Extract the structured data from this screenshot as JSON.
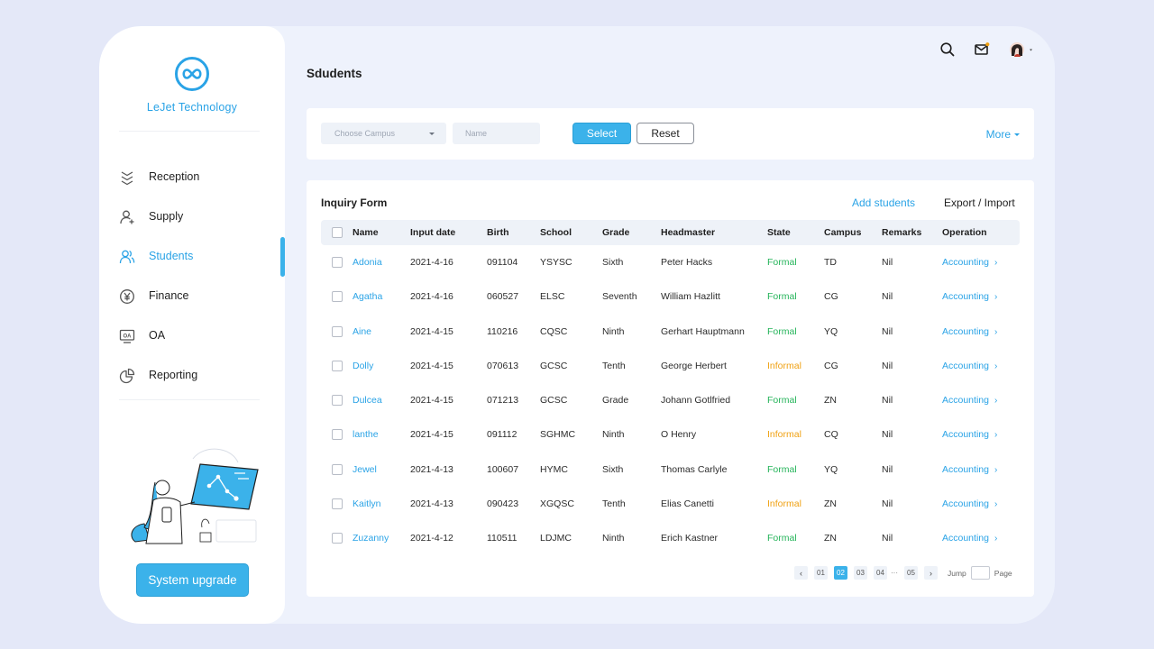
{
  "sidebar": {
    "brand": "LeJet Technology",
    "items": [
      {
        "label": "Reception",
        "icon": "reception-icon"
      },
      {
        "label": "Supply",
        "icon": "user-add-icon"
      },
      {
        "label": "Students",
        "icon": "users-icon",
        "active": true
      },
      {
        "label": "Finance",
        "icon": "yen-icon"
      },
      {
        "label": "OA",
        "icon": "oa-icon"
      },
      {
        "label": "Reporting",
        "icon": "pie-chart-icon"
      }
    ],
    "upgrade_label": "System upgrade"
  },
  "header": {
    "title": "Sdudents",
    "icons": [
      "search-icon",
      "mail-icon",
      "avatar"
    ]
  },
  "filter": {
    "campus_placeholder": "Choose Campus",
    "name_placeholder": "Name",
    "select_label": "Select",
    "reset_label": "Reset",
    "more_label": "More"
  },
  "table": {
    "title": "Inquiry Form",
    "add_label": "Add students",
    "export_label": "Export / Import",
    "columns": [
      "Name",
      "Input date",
      "Birth",
      "School",
      "Grade",
      "Headmaster",
      "State",
      "Campus",
      "Remarks",
      "Operation"
    ],
    "rows": [
      {
        "name": "Adonia",
        "date": "2021-4-16",
        "birth": "091104",
        "school": "YSYSC",
        "grade": "Sixth",
        "headmaster": "Peter Hacks",
        "state": "Formal",
        "campus": "TD",
        "remarks": "Nil",
        "operation": "Accounting"
      },
      {
        "name": "Agatha",
        "date": "2021-4-16",
        "birth": "060527",
        "school": "ELSC",
        "grade": "Seventh",
        "headmaster": "William Hazlitt",
        "state": "Formal",
        "campus": "CG",
        "remarks": "Nil",
        "operation": "Accounting"
      },
      {
        "name": "Aine",
        "date": "2021-4-15",
        "birth": "110216",
        "school": "CQSC",
        "grade": "Ninth",
        "headmaster": "Gerhart Hauptmann",
        "state": "Formal",
        "campus": "YQ",
        "remarks": "Nil",
        "operation": "Accounting"
      },
      {
        "name": "Dolly",
        "date": "2021-4-15",
        "birth": "070613",
        "school": "GCSC",
        "grade": "Tenth",
        "headmaster": "George Herbert",
        "state": "Informal",
        "campus": "CG",
        "remarks": "Nil",
        "operation": "Accounting"
      },
      {
        "name": "Dulcea",
        "date": "2021-4-15",
        "birth": "071213",
        "school": "GCSC",
        "grade": "Grade",
        "headmaster": "Johann Gotlfried",
        "state": "Formal",
        "campus": "ZN",
        "remarks": "Nil",
        "operation": "Accounting"
      },
      {
        "name": "lanthe",
        "date": "2021-4-15",
        "birth": "091112",
        "school": "SGHMC",
        "grade": "Ninth",
        "headmaster": "O Henry",
        "state": "Informal",
        "campus": "CQ",
        "remarks": "Nil",
        "operation": "Accounting"
      },
      {
        "name": "Jewel",
        "date": "2021-4-13",
        "birth": "100607",
        "school": "HYMC",
        "grade": "Sixth",
        "headmaster": "Thomas Carlyle",
        "state": "Formal",
        "campus": "YQ",
        "remarks": "Nil",
        "operation": "Accounting"
      },
      {
        "name": "Kaitlyn",
        "date": "2021-4-13",
        "birth": "090423",
        "school": "XGQSC",
        "grade": "Tenth",
        "headmaster": "Elias Canetti",
        "state": "Informal",
        "campus": "ZN",
        "remarks": "Nil",
        "operation": "Accounting"
      },
      {
        "name": "Zuzanny",
        "date": "2021-4-12",
        "birth": "110511",
        "school": "LDJMC",
        "grade": "Ninth",
        "headmaster": "Erich Kastner",
        "state": "Formal",
        "campus": "ZN",
        "remarks": "Nil",
        "operation": "Accounting"
      }
    ]
  },
  "pagination": {
    "pages": [
      "01",
      "02",
      "03",
      "04",
      "05"
    ],
    "current": "02",
    "ellipsis": "···",
    "jump_label": "Jump",
    "page_label": "Page"
  },
  "colors": {
    "accent": "#3bb2ea",
    "formal": "#25b45a",
    "informal": "#f0a113",
    "background": "#e4e8f8"
  }
}
